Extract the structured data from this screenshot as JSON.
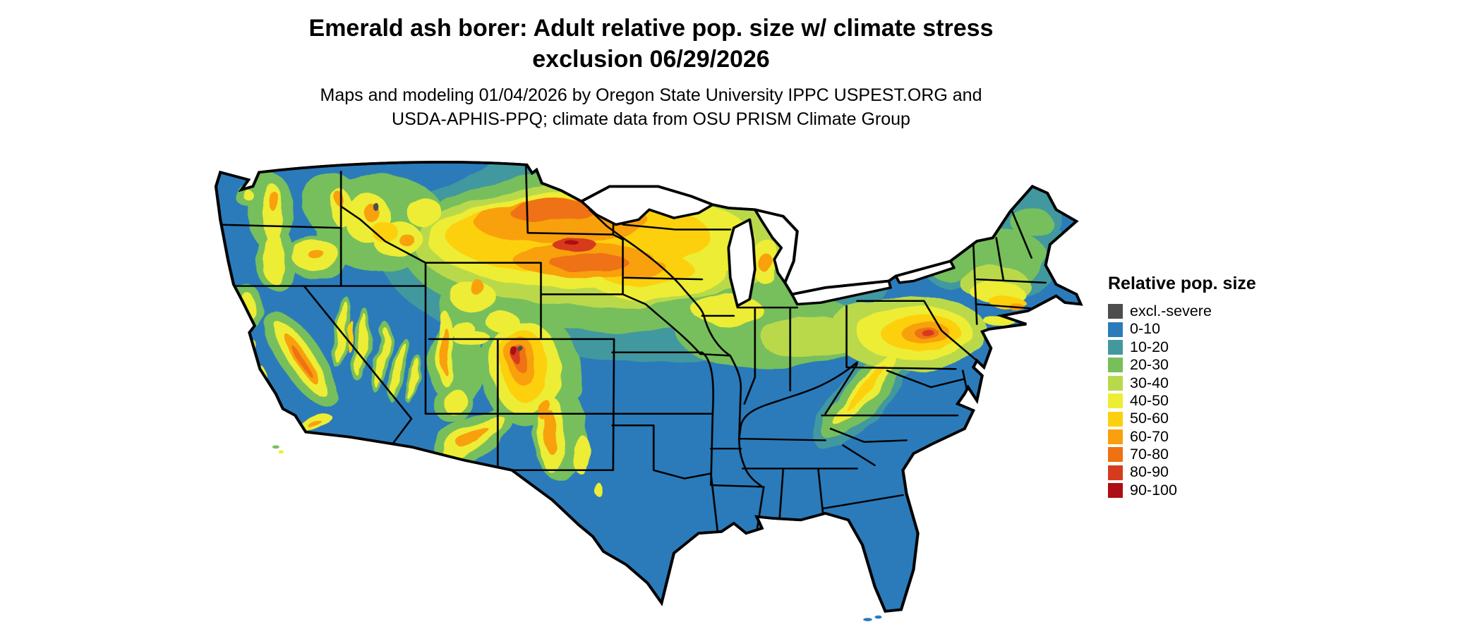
{
  "title": {
    "line1": "Emerald ash borer: Adult relative pop. size w/ climate stress",
    "line2": "exclusion 06/29/2026"
  },
  "subtitle": {
    "line1": "Maps and modeling 01/04/2026 by Oregon State University IPPC USPEST.ORG and",
    "line2": "USDA-APHIS-PPQ; climate data from OSU PRISM Climate Group"
  },
  "legend": {
    "title": "Relative pop. size",
    "items": [
      {
        "label": "excl.-severe",
        "color": "#4d4d4d"
      },
      {
        "label": "0-10",
        "color": "#2b7bba"
      },
      {
        "label": "10-20",
        "color": "#43989f"
      },
      {
        "label": "20-30",
        "color": "#77bf5b"
      },
      {
        "label": "30-40",
        "color": "#b9d94c"
      },
      {
        "label": "40-50",
        "color": "#eded35"
      },
      {
        "label": "50-60",
        "color": "#fdd00f"
      },
      {
        "label": "60-70",
        "color": "#f9a00c"
      },
      {
        "label": "70-80",
        "color": "#ef7212"
      },
      {
        "label": "80-90",
        "color": "#d73b1d"
      },
      {
        "label": "90-100",
        "color": "#ad0d14"
      }
    ]
  },
  "map": {
    "region": "Continental United States",
    "base_color": "#2b7bba",
    "water_color": "#ffffff",
    "border_color": "#000000"
  }
}
